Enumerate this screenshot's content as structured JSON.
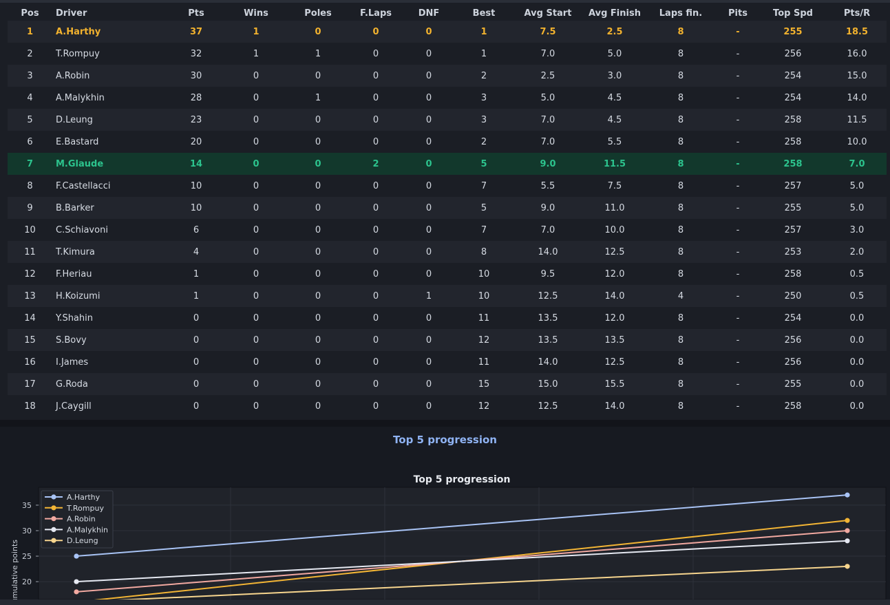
{
  "table": {
    "headers": [
      "Pos",
      "Driver",
      "Pts",
      "Wins",
      "Poles",
      "F.Laps",
      "DNF",
      "Best",
      "Avg Start",
      "Avg Finish",
      "Laps fin.",
      "Pits",
      "Top Spd",
      "Pts/R"
    ],
    "rows": [
      [
        "1",
        "A.Harthy",
        "37",
        "1",
        "0",
        "0",
        "0",
        "1",
        "7.5",
        "2.5",
        "8",
        "-",
        "255",
        "18.5"
      ],
      [
        "2",
        "T.Rompuy",
        "32",
        "1",
        "1",
        "0",
        "0",
        "1",
        "7.0",
        "5.0",
        "8",
        "-",
        "256",
        "16.0"
      ],
      [
        "3",
        "A.Robin",
        "30",
        "0",
        "0",
        "0",
        "0",
        "2",
        "2.5",
        "3.0",
        "8",
        "-",
        "254",
        "15.0"
      ],
      [
        "4",
        "A.Malykhin",
        "28",
        "0",
        "1",
        "0",
        "0",
        "3",
        "5.0",
        "4.5",
        "8",
        "-",
        "254",
        "14.0"
      ],
      [
        "5",
        "D.Leung",
        "23",
        "0",
        "0",
        "0",
        "0",
        "3",
        "7.0",
        "4.5",
        "8",
        "-",
        "258",
        "11.5"
      ],
      [
        "6",
        "E.Bastard",
        "20",
        "0",
        "0",
        "0",
        "0",
        "2",
        "7.0",
        "5.5",
        "8",
        "-",
        "258",
        "10.0"
      ],
      [
        "7",
        "M.Glaude",
        "14",
        "0",
        "0",
        "2",
        "0",
        "5",
        "9.0",
        "11.5",
        "8",
        "-",
        "258",
        "7.0"
      ],
      [
        "8",
        "F.Castellacci",
        "10",
        "0",
        "0",
        "0",
        "0",
        "7",
        "5.5",
        "7.5",
        "8",
        "-",
        "257",
        "5.0"
      ],
      [
        "9",
        "B.Barker",
        "10",
        "0",
        "0",
        "0",
        "0",
        "5",
        "9.0",
        "11.0",
        "8",
        "-",
        "255",
        "5.0"
      ],
      [
        "10",
        "C.Schiavoni",
        "6",
        "0",
        "0",
        "0",
        "0",
        "7",
        "7.0",
        "10.0",
        "8",
        "-",
        "257",
        "3.0"
      ],
      [
        "11",
        "T.Kimura",
        "4",
        "0",
        "0",
        "0",
        "0",
        "8",
        "14.0",
        "12.5",
        "8",
        "-",
        "253",
        "2.0"
      ],
      [
        "12",
        "F.Heriau",
        "1",
        "0",
        "0",
        "0",
        "0",
        "10",
        "9.5",
        "12.0",
        "8",
        "-",
        "258",
        "0.5"
      ],
      [
        "13",
        "H.Koizumi",
        "1",
        "0",
        "0",
        "0",
        "1",
        "10",
        "12.5",
        "14.0",
        "4",
        "-",
        "250",
        "0.5"
      ],
      [
        "14",
        "Y.Shahin",
        "0",
        "0",
        "0",
        "0",
        "0",
        "11",
        "13.5",
        "12.0",
        "8",
        "-",
        "254",
        "0.0"
      ],
      [
        "15",
        "S.Bovy",
        "0",
        "0",
        "0",
        "0",
        "0",
        "12",
        "13.5",
        "13.5",
        "8",
        "-",
        "256",
        "0.0"
      ],
      [
        "16",
        "I.James",
        "0",
        "0",
        "0",
        "0",
        "0",
        "11",
        "14.0",
        "12.5",
        "8",
        "-",
        "256",
        "0.0"
      ],
      [
        "17",
        "G.Roda",
        "0",
        "0",
        "0",
        "0",
        "0",
        "15",
        "15.0",
        "15.5",
        "8",
        "-",
        "255",
        "0.0"
      ],
      [
        "18",
        "J.Caygill",
        "0",
        "0",
        "0",
        "0",
        "0",
        "12",
        "12.5",
        "14.0",
        "8",
        "-",
        "258",
        "0.0"
      ]
    ],
    "leader_row": 0,
    "player_row": 6,
    "colors": {
      "leader": "#f2b22e",
      "player": "#2cc38d",
      "player_bg": "#12382c"
    }
  },
  "section_title": "Top 5 progression",
  "chart_data": {
    "type": "line",
    "title": "Top 5 progression",
    "xlabel": "",
    "ylabel": "Cumulative points",
    "x": [
      1,
      2
    ],
    "ylim": [
      16.5,
      38.5
    ],
    "yticks": [
      20,
      25,
      30,
      35
    ],
    "grid": true,
    "legend": "top-left",
    "series": [
      {
        "name": "A.Harthy",
        "values": [
          25,
          37
        ],
        "color": "#a9c4f6"
      },
      {
        "name": "T.Rompuy",
        "values": [
          16,
          32
        ],
        "color": "#f3b535"
      },
      {
        "name": "A.Robin",
        "values": [
          18,
          30
        ],
        "color": "#f2a9a1"
      },
      {
        "name": "A.Malykhin",
        "values": [
          20,
          28
        ],
        "color": "#e6e9f2"
      },
      {
        "name": "D.Leung",
        "values": [
          16,
          23
        ],
        "color": "#f7d58e"
      }
    ]
  }
}
